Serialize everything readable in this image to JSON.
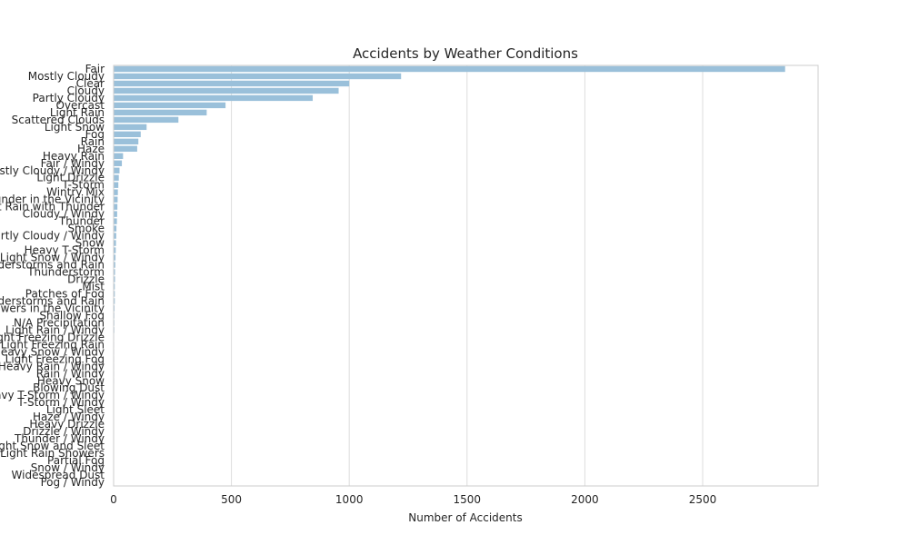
{
  "chart_data": {
    "type": "bar",
    "orientation": "horizontal",
    "title": "Accidents by Weather Conditions",
    "xlabel": "Number of Accidents",
    "ylabel": "",
    "xlim": [
      0,
      2990
    ],
    "xticks": [
      0,
      500,
      1000,
      1500,
      2000,
      2500
    ],
    "grid": "vertical",
    "bar_color": "#9ac0da",
    "categories": [
      "Fair",
      "Mostly Cloudy",
      "Clear",
      "Cloudy",
      "Partly Cloudy",
      "Overcast",
      "Light Rain",
      "Scattered Clouds",
      "Light Snow",
      "Fog",
      "Rain",
      "Haze",
      "Heavy Rain",
      "Fair / Windy",
      "Mostly Cloudy / Windy",
      "Light Drizzle",
      "T-Storm",
      "Wintry Mix",
      "Thunder in the Vicinity",
      "Light Rain with Thunder",
      "Cloudy / Windy",
      "Thunder",
      "Smoke",
      "Partly Cloudy / Windy",
      "Snow",
      "Heavy T-Storm",
      "Light Snow / Windy",
      "Thunderstorms and Rain",
      "Thunderstorm",
      "Drizzle",
      "Mist",
      "Patches of Fog",
      "Light Thunderstorms and Rain",
      "Showers in the Vicinity",
      "Shallow Fog",
      "N/A Precipitation",
      "Light Rain / Windy",
      "Light Freezing Drizzle",
      "Light Freezing Rain",
      "Heavy Snow / Windy",
      "Light Freezing Fog",
      "Heavy Rain / Windy",
      "Rain / Windy",
      "Heavy Snow",
      "Blowing Dust",
      "Heavy T-Storm / Windy",
      "T-Storm / Windy",
      "Light Sleet",
      "Haze / Windy",
      "Heavy Drizzle",
      "Drizzle / Windy",
      "Thunder / Windy",
      "Light Snow and Sleet",
      "Light Rain Showers",
      "Partial Fog",
      "Snow / Windy",
      "Widespread Dust",
      "Fog / Windy"
    ],
    "values": [
      2850,
      1220,
      1000,
      955,
      845,
      475,
      395,
      275,
      140,
      115,
      105,
      100,
      40,
      35,
      25,
      22,
      20,
      18,
      17,
      16,
      15,
      14,
      12,
      11,
      10,
      9,
      8,
      7,
      6,
      6,
      5,
      5,
      5,
      4,
      3,
      3,
      3,
      2,
      2,
      2,
      2,
      2,
      2,
      2,
      1,
      1,
      1,
      1,
      1,
      1,
      1,
      1,
      1,
      1,
      1,
      1,
      1,
      1
    ]
  }
}
